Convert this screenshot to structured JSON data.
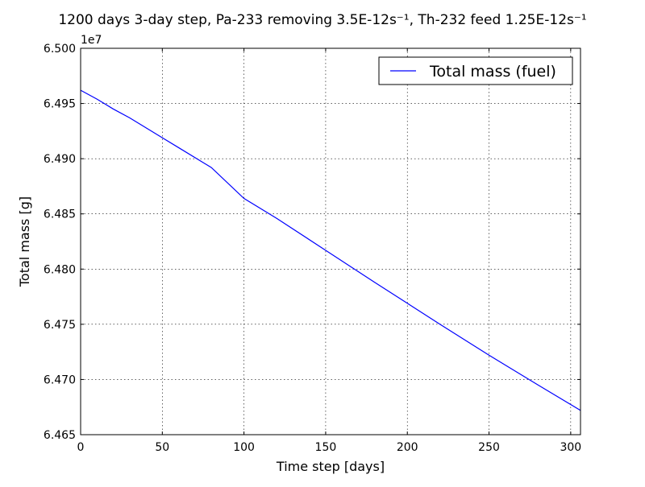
{
  "chart_data": {
    "type": "line",
    "title": "1200 days 3-day step, Pa-233 removing 3.5E-12s⁻¹, Th-232 feed 1.25E-12s⁻¹",
    "xlabel": "Time step [days]",
    "ylabel": "Total mass [g]",
    "offset_label": "1e7",
    "xlim": [
      0,
      306
    ],
    "ylim": [
      6.465,
      6.5
    ],
    "xticks": [
      0,
      50,
      100,
      150,
      200,
      250,
      300
    ],
    "yticks": [
      6.465,
      6.47,
      6.475,
      6.48,
      6.485,
      6.49,
      6.495,
      6.5
    ],
    "xtick_labels": [
      "0",
      "50",
      "100",
      "150",
      "200",
      "250",
      "300"
    ],
    "ytick_labels": [
      "6.465",
      "6.470",
      "6.475",
      "6.480",
      "6.485",
      "6.490",
      "6.495",
      "6.500"
    ],
    "grid": true,
    "legend_position": "top-right",
    "series": [
      {
        "name": "Total mass (fuel)",
        "color": "#0000ff",
        "x": [
          0,
          5,
          10,
          20,
          30,
          40,
          50,
          60,
          80,
          100,
          120,
          150,
          180,
          200,
          220,
          250,
          280,
          306
        ],
        "y": [
          6.4962,
          6.4958,
          6.4954,
          6.4945,
          6.4937,
          6.4928,
          6.4919,
          6.491,
          6.4892,
          6.4864,
          6.4846,
          6.4817,
          6.4788,
          6.4769,
          6.475,
          6.4722,
          6.4695,
          6.4672
        ]
      }
    ]
  }
}
